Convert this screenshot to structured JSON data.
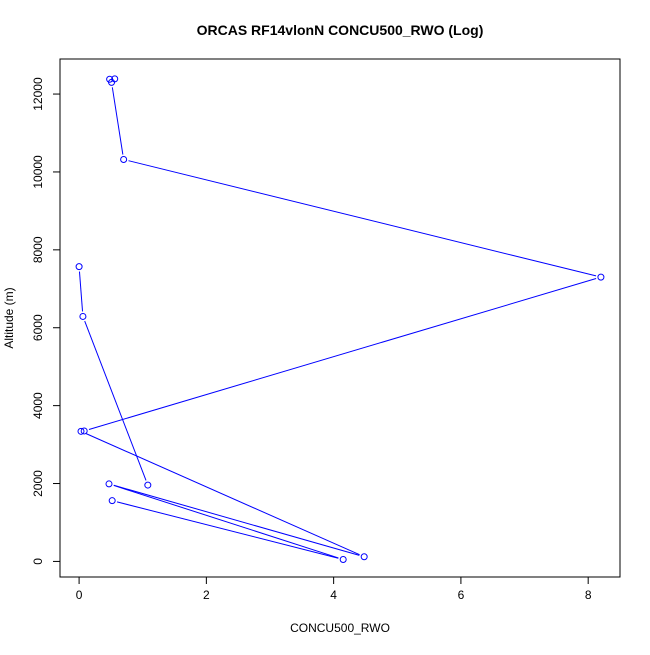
{
  "chart_data": {
    "type": "line",
    "title": "ORCAS RF14vlonN CONCU500_RWO (Log)",
    "xlabel": "CONCU500_RWO",
    "ylabel": "Altitude (m)",
    "xlim": [
      -0.3,
      8.5
    ],
    "ylim": [
      -400,
      12900
    ],
    "xticks": [
      0,
      2,
      4,
      6,
      8
    ],
    "yticks": [
      0,
      2000,
      4000,
      6000,
      8000,
      10000,
      12000
    ],
    "xtick_labels": [
      "0",
      "2",
      "4",
      "6",
      "8"
    ],
    "ytick_labels": [
      "0",
      "2000",
      "4000",
      "6000",
      "8000",
      "10000",
      "12000"
    ],
    "grid": false,
    "legend": "none",
    "markers": "open-circle",
    "series_color": "#0000ff",
    "series": [
      {
        "points": [
          {
            "x": 0.48,
            "y": 12380
          },
          {
            "x": 0.56,
            "y": 12390
          },
          {
            "x": 0.51,
            "y": 12300
          },
          {
            "x": 0.7,
            "y": 10320
          },
          {
            "x": 8.2,
            "y": 7300
          },
          {
            "x": 0.08,
            "y": 3350
          },
          {
            "x": 0.03,
            "y": 3340
          },
          {
            "x": 4.48,
            "y": 120
          },
          {
            "x": 0.47,
            "y": 1990
          },
          {
            "x": 4.15,
            "y": 50
          },
          {
            "x": 0.52,
            "y": 1560
          }
        ]
      },
      {
        "points": [
          {
            "x": 0.0,
            "y": 7570
          },
          {
            "x": 0.06,
            "y": 6290
          },
          {
            "x": 1.08,
            "y": 1960
          }
        ]
      }
    ]
  }
}
